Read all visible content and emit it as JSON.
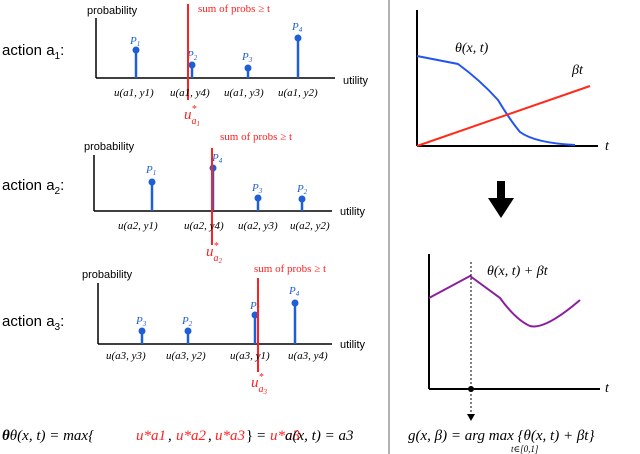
{
  "colors": {
    "stem": "#1f5fd6",
    "threshold": "#ff2020",
    "axis": "#000000",
    "theta_curve": "#2255ee",
    "beta_line": "#ff2a1a",
    "g_curve": "#8a1f9e",
    "divider": "#666666"
  },
  "left_panels": [
    {
      "action_label": "action a",
      "action_sub": "1",
      "ylabel": "probability",
      "xlabel": "utility",
      "threshold_label": "sum of probs ≥ t",
      "ustar_main": "u",
      "ustar_sup": "*",
      "ustar_sub": "a",
      "ustar_subsub": "1",
      "bars": [
        {
          "p": "P",
          "p_sub": "1",
          "u_label": "u(a1, y1)",
          "height": 0.55
        },
        {
          "p": "P",
          "p_sub": "2",
          "u_label": "u(a1, y4)",
          "height": 0.25
        },
        {
          "p": "P",
          "p_sub": "3",
          "u_label": "u(a1, y3)",
          "height": 0.2
        },
        {
          "p": "P",
          "p_sub": "4",
          "u_label": "u(a1, y2)",
          "height": 0.75
        }
      ]
    },
    {
      "action_label": "action a",
      "action_sub": "2",
      "ylabel": "probability",
      "xlabel": "utility",
      "threshold_label": "sum of probs ≥ t",
      "ustar_main": "u",
      "ustar_sup": "*",
      "ustar_sub": "a",
      "ustar_subsub": "2",
      "bars": [
        {
          "p": "P",
          "p_sub": "1",
          "u_label": "u(a2, y1)",
          "height": 0.55
        },
        {
          "p": "P",
          "p_sub": "4",
          "u_label": "u(a2, y4)",
          "height": 0.8
        },
        {
          "p": "P",
          "p_sub": "3",
          "u_label": "u(a2, y3)",
          "height": 0.25
        },
        {
          "p": "P",
          "p_sub": "2",
          "u_label": "u(a2, y2)",
          "height": 0.25
        }
      ]
    },
    {
      "action_label": "action a",
      "action_sub": "3",
      "ylabel": "probability",
      "xlabel": "utility",
      "threshold_label": "sum of probs ≥ t",
      "ustar_main": "u",
      "ustar_sup": "*",
      "ustar_sub": "a",
      "ustar_subsub": "3",
      "bars": [
        {
          "p": "P",
          "p_sub": "3",
          "u_label": "u(a3, y3)",
          "height": 0.25
        },
        {
          "p": "P",
          "p_sub": "2",
          "u_label": "u(a3, y2)",
          "height": 0.25
        },
        {
          "p": "P",
          "p_sub": "1",
          "u_label": "u(a3, y1)",
          "height": 0.5
        },
        {
          "p": "P",
          "p_sub": "4",
          "u_label": "u(a3, y4)",
          "height": 0.75
        }
      ]
    }
  ],
  "bottom_formula": {
    "theta": "θ(x, t) = max{",
    "u1": "u*a1",
    "comma1": ", ",
    "u2": "u*a2",
    "comma2": ", ",
    "u3": "u*a3",
    "close": "} = ",
    "result": "u*a3",
    "action": "a(x, t) = a3"
  },
  "top_right": {
    "theta_label": "θ(x, t)",
    "beta_label": "βt",
    "t_label": "t"
  },
  "bottom_right": {
    "sum_label": "θ(x, t) + βt",
    "t_label": "t",
    "formula": "g(x, β) = arg max {θ(x, t) + βt}",
    "formula_under": "t∈[0,1]"
  }
}
